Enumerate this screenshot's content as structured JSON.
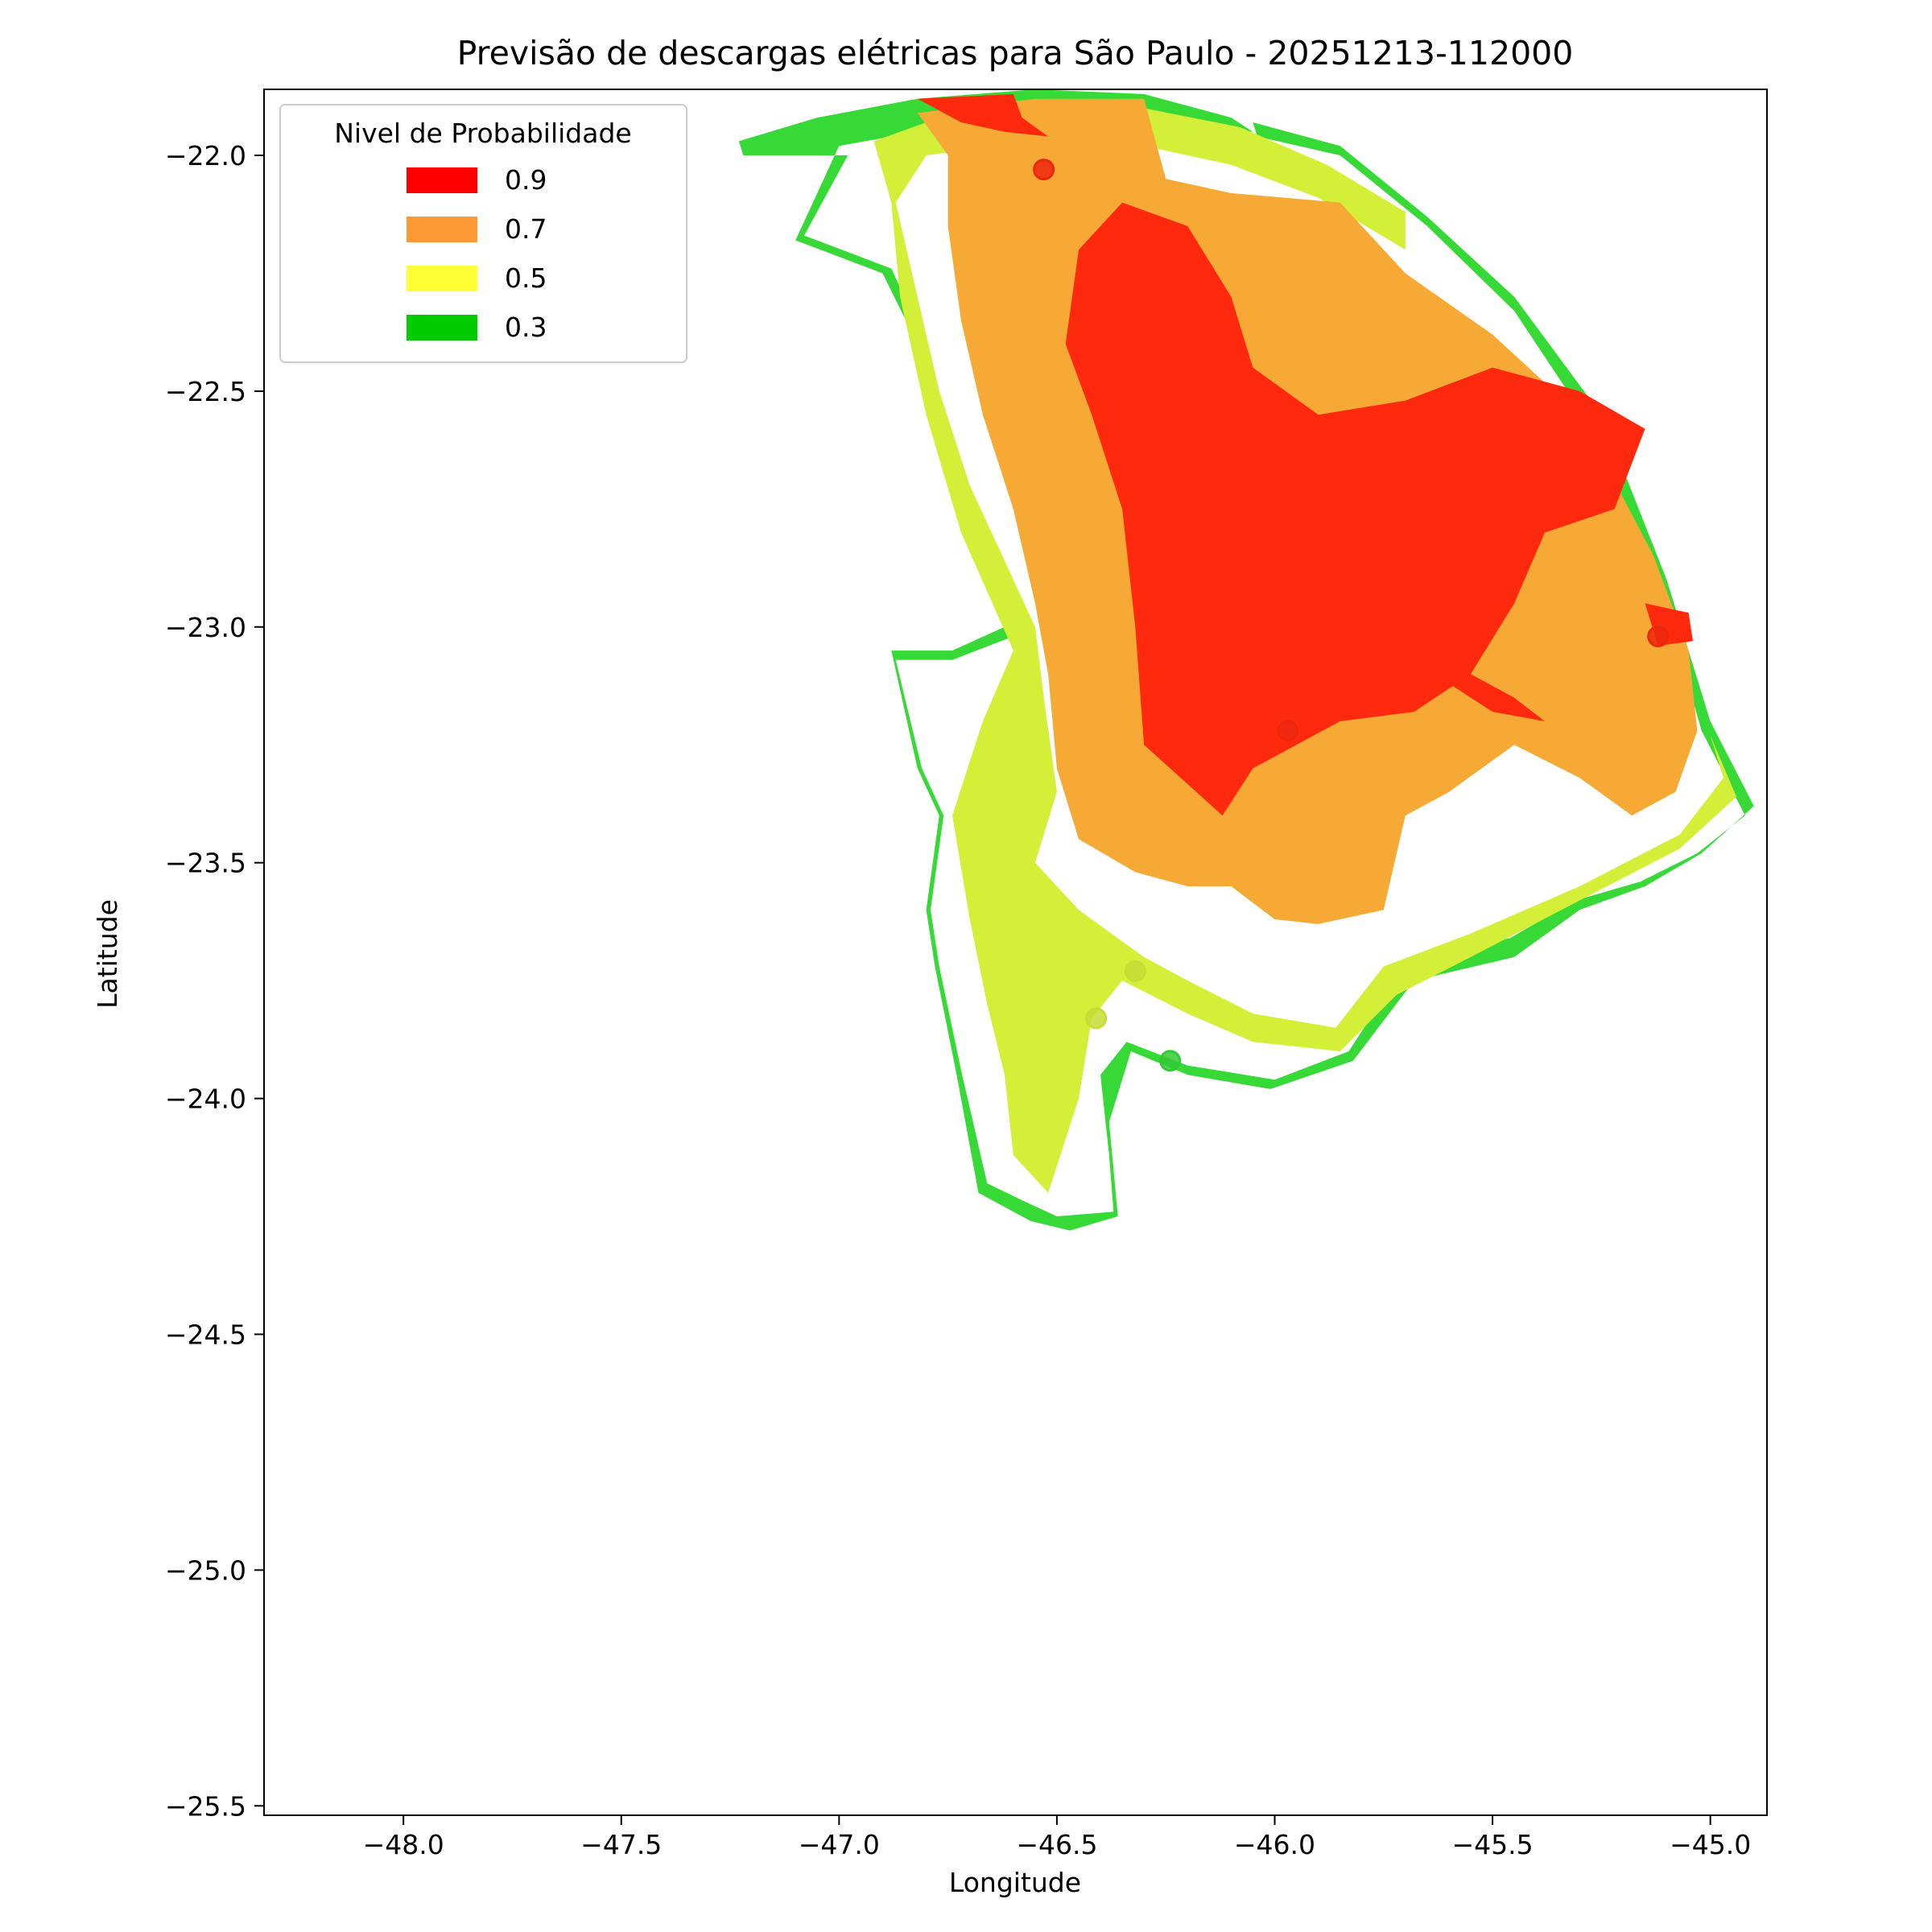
{
  "chart_data": {
    "type": "heatmap",
    "title": "Previsão de descargas elétricas para São Paulo - 20251213-112000",
    "xlabel": "Longitude",
    "ylabel": "Latitude",
    "xlim": [
      -48.32,
      -44.87
    ],
    "ylim": [
      -25.52,
      -21.86
    ],
    "xticks": [
      -48.0,
      -47.5,
      -47.0,
      -46.5,
      -46.0,
      -45.5,
      -45.0
    ],
    "xtick_labels": [
      "−48.0",
      "−47.5",
      "−47.0",
      "−46.5",
      "−46.0",
      "−45.5",
      "−45.0"
    ],
    "yticks": [
      -22.0,
      -22.5,
      -23.0,
      -23.5,
      -24.0,
      -24.5,
      -25.0,
      -25.5
    ],
    "ytick_labels": [
      "−22.0",
      "−22.5",
      "−23.0",
      "−23.5",
      "−24.0",
      "−24.5",
      "−25.0",
      "−25.5"
    ],
    "grid": false,
    "legend": {
      "title": "Nivel de Probabilidade",
      "placement": "top-left",
      "entries": [
        {
          "label": "0.9",
          "color": "#ff0000"
        },
        {
          "label": "0.7",
          "color": "#ff9933"
        },
        {
          "label": "0.5",
          "color": "#ffff33"
        },
        {
          "label": "0.3",
          "color": "#00cc00"
        }
      ]
    },
    "fill_colors": {
      "0.3": "#37d937",
      "0.5": "#d4ef38",
      "0.7": "#f6aa35",
      "0.9": "#ff2a0e"
    },
    "regions": [
      {
        "level": "0.3",
        "polygons": [
          [
            [
              -47.23,
              -21.97
            ],
            [
              -47.05,
              -21.92
            ],
            [
              -46.82,
              -21.88
            ],
            [
              -46.55,
              -21.86
            ],
            [
              -46.3,
              -21.87
            ],
            [
              -46.1,
              -21.92
            ],
            [
              -46.05,
              -21.95
            ],
            [
              -46.3,
              -21.93
            ],
            [
              -46.55,
              -21.92
            ],
            [
              -46.82,
              -21.95
            ],
            [
              -47.0,
              -21.98
            ],
            [
              -47.1,
              -22.18
            ],
            [
              -46.9,
              -22.25
            ],
            [
              -46.82,
              -22.4
            ],
            [
              -46.74,
              -22.7
            ],
            [
              -46.62,
              -23.0
            ],
            [
              -46.74,
              -23.05
            ],
            [
              -46.88,
              -23.05
            ],
            [
              -46.82,
              -23.3
            ],
            [
              -46.77,
              -23.4
            ],
            [
              -46.8,
              -23.6
            ],
            [
              -46.78,
              -23.72
            ],
            [
              -46.73,
              -23.95
            ],
            [
              -46.68,
              -24.2
            ],
            [
              -46.56,
              -24.26
            ],
            [
              -46.47,
              -24.28
            ],
            [
              -46.36,
              -24.25
            ],
            [
              -46.38,
              -24.05
            ],
            [
              -46.33,
              -23.9
            ],
            [
              -46.2,
              -23.95
            ],
            [
              -46.01,
              -23.98
            ],
            [
              -45.82,
              -23.92
            ],
            [
              -45.68,
              -23.75
            ],
            [
              -45.45,
              -23.7
            ],
            [
              -45.3,
              -23.6
            ],
            [
              -45.15,
              -23.55
            ],
            [
              -45.02,
              -23.48
            ],
            [
              -44.9,
              -23.38
            ],
            [
              -45.0,
              -23.2
            ],
            [
              -45.1,
              -22.9
            ],
            [
              -45.25,
              -22.55
            ],
            [
              -45.45,
              -22.3
            ],
            [
              -45.65,
              -22.13
            ],
            [
              -45.85,
              -21.98
            ],
            [
              -46.05,
              -21.93
            ],
            [
              -46.04,
              -21.96
            ],
            [
              -45.85,
              -22.0
            ],
            [
              -45.65,
              -22.15
            ],
            [
              -45.45,
              -22.33
            ],
            [
              -45.27,
              -22.58
            ],
            [
              -45.12,
              -22.9
            ],
            [
              -45.02,
              -23.22
            ],
            [
              -44.92,
              -23.4
            ],
            [
              -45.03,
              -23.48
            ],
            [
              -45.16,
              -23.54
            ],
            [
              -45.31,
              -23.58
            ],
            [
              -45.46,
              -23.66
            ],
            [
              -45.69,
              -23.7
            ],
            [
              -45.83,
              -23.9
            ],
            [
              -46.0,
              -23.96
            ],
            [
              -46.2,
              -23.93
            ],
            [
              -46.34,
              -23.88
            ],
            [
              -46.4,
              -23.95
            ],
            [
              -46.38,
              -24.12
            ],
            [
              -46.37,
              -24.24
            ],
            [
              -46.5,
              -24.25
            ],
            [
              -46.57,
              -24.22
            ],
            [
              -46.66,
              -24.18
            ],
            [
              -46.72,
              -23.94
            ],
            [
              -46.77,
              -23.72
            ],
            [
              -46.79,
              -23.6
            ],
            [
              -46.76,
              -23.4
            ],
            [
              -46.81,
              -23.3
            ],
            [
              -46.87,
              -23.07
            ],
            [
              -46.74,
              -23.07
            ],
            [
              -46.6,
              -23.02
            ],
            [
              -46.73,
              -22.7
            ],
            [
              -46.8,
              -22.4
            ],
            [
              -46.88,
              -22.24
            ],
            [
              -47.08,
              -22.17
            ],
            [
              -46.98,
              -22.0
            ],
            [
              -47.22,
              -22.0
            ]
          ]
        ]
      },
      {
        "level": "0.5",
        "polygons": [
          [
            [
              -46.92,
              -21.97
            ],
            [
              -46.8,
              -21.93
            ],
            [
              -46.55,
              -21.9
            ],
            [
              -46.3,
              -21.9
            ],
            [
              -46.08,
              -21.94
            ],
            [
              -45.88,
              -22.02
            ],
            [
              -45.7,
              -22.12
            ],
            [
              -45.7,
              -22.2
            ],
            [
              -45.9,
              -22.09
            ],
            [
              -46.1,
              -22.02
            ],
            [
              -46.3,
              -21.98
            ],
            [
              -46.55,
              -21.97
            ],
            [
              -46.8,
              -22.0
            ],
            [
              -46.87,
              -22.1
            ],
            [
              -46.82,
              -22.3
            ],
            [
              -46.77,
              -22.5
            ],
            [
              -46.7,
              -22.7
            ],
            [
              -46.55,
              -23.0
            ],
            [
              -46.53,
              -23.15
            ],
            [
              -46.5,
              -23.35
            ],
            [
              -46.55,
              -23.5
            ],
            [
              -46.45,
              -23.6
            ],
            [
              -46.3,
              -23.7
            ],
            [
              -46.2,
              -23.75
            ],
            [
              -46.05,
              -23.82
            ],
            [
              -45.86,
              -23.85
            ],
            [
              -45.75,
              -23.72
            ],
            [
              -45.55,
              -23.65
            ],
            [
              -45.3,
              -23.55
            ],
            [
              -45.07,
              -23.44
            ],
            [
              -44.97,
              -23.32
            ],
            [
              -45.0,
              -23.23
            ],
            [
              -44.94,
              -23.36
            ],
            [
              -45.07,
              -23.47
            ],
            [
              -45.3,
              -23.58
            ],
            [
              -45.55,
              -23.7
            ],
            [
              -45.72,
              -23.78
            ],
            [
              -45.85,
              -23.9
            ],
            [
              -46.05,
              -23.88
            ],
            [
              -46.2,
              -23.82
            ],
            [
              -46.35,
              -23.75
            ],
            [
              -46.42,
              -23.83
            ],
            [
              -46.45,
              -24.0
            ],
            [
              -46.52,
              -24.2
            ],
            [
              -46.6,
              -24.12
            ],
            [
              -46.62,
              -23.95
            ],
            [
              -46.66,
              -23.8
            ],
            [
              -46.7,
              -23.62
            ],
            [
              -46.74,
              -23.4
            ],
            [
              -46.67,
              -23.2
            ],
            [
              -46.6,
              -23.05
            ],
            [
              -46.72,
              -22.8
            ],
            [
              -46.8,
              -22.55
            ],
            [
              -46.86,
              -22.3
            ],
            [
              -46.88,
              -22.1
            ]
          ]
        ]
      },
      {
        "level": "0.7",
        "polygons": [
          [
            [
              -46.82,
              -21.91
            ],
            [
              -46.55,
              -21.88
            ],
            [
              -46.3,
              -21.88
            ],
            [
              -46.25,
              -22.05
            ],
            [
              -46.1,
              -22.08
            ],
            [
              -45.85,
              -22.1
            ],
            [
              -45.7,
              -22.25
            ],
            [
              -45.5,
              -22.38
            ],
            [
              -45.3,
              -22.55
            ],
            [
              -45.13,
              -22.85
            ],
            [
              -45.05,
              -23.05
            ],
            [
              -45.03,
              -23.22
            ],
            [
              -45.08,
              -23.35
            ],
            [
              -45.18,
              -23.4
            ],
            [
              -45.3,
              -23.32
            ],
            [
              -45.45,
              -23.25
            ],
            [
              -45.6,
              -23.35
            ],
            [
              -45.7,
              -23.4
            ],
            [
              -45.75,
              -23.6
            ],
            [
              -45.9,
              -23.63
            ],
            [
              -46.0,
              -23.62
            ],
            [
              -46.1,
              -23.55
            ],
            [
              -46.2,
              -23.55
            ],
            [
              -46.32,
              -23.52
            ],
            [
              -46.45,
              -23.45
            ],
            [
              -46.5,
              -23.3
            ],
            [
              -46.52,
              -23.1
            ],
            [
              -46.55,
              -22.95
            ],
            [
              -46.6,
              -22.75
            ],
            [
              -46.67,
              -22.55
            ],
            [
              -46.72,
              -22.35
            ],
            [
              -46.75,
              -22.15
            ],
            [
              -46.75,
              -22.0
            ]
          ]
        ]
      },
      {
        "level": "0.9",
        "polygons": [
          [
            [
              -46.82,
              -21.88
            ],
            [
              -46.6,
              -21.87
            ],
            [
              -46.58,
              -21.92
            ],
            [
              -46.52,
              -21.96
            ],
            [
              -46.62,
              -21.95
            ],
            [
              -46.72,
              -21.93
            ]
          ],
          [
            [
              -46.45,
              -22.2
            ],
            [
              -46.35,
              -22.1
            ],
            [
              -46.2,
              -22.15
            ],
            [
              -46.1,
              -22.3
            ],
            [
              -46.05,
              -22.45
            ],
            [
              -45.9,
              -22.55
            ],
            [
              -45.7,
              -22.52
            ],
            [
              -45.5,
              -22.45
            ],
            [
              -45.3,
              -22.5
            ],
            [
              -45.15,
              -22.58
            ],
            [
              -45.22,
              -22.75
            ],
            [
              -45.38,
              -22.8
            ],
            [
              -45.45,
              -22.95
            ],
            [
              -45.55,
              -23.1
            ],
            [
              -45.68,
              -23.18
            ],
            [
              -45.85,
              -23.2
            ],
            [
              -45.95,
              -23.25
            ],
            [
              -46.05,
              -23.3
            ],
            [
              -46.12,
              -23.4
            ],
            [
              -46.18,
              -23.35
            ],
            [
              -46.3,
              -23.25
            ],
            [
              -46.32,
              -23.0
            ],
            [
              -46.35,
              -22.75
            ],
            [
              -46.42,
              -22.55
            ],
            [
              -46.48,
              -22.4
            ]
          ],
          [
            [
              -45.15,
              -22.95
            ],
            [
              -45.05,
              -22.97
            ],
            [
              -45.04,
              -23.03
            ],
            [
              -45.12,
              -23.04
            ]
          ],
          [
            [
              -45.62,
              -23.05
            ],
            [
              -45.55,
              -23.1
            ],
            [
              -45.45,
              -23.15
            ],
            [
              -45.38,
              -23.2
            ],
            [
              -45.5,
              -23.18
            ],
            [
              -45.6,
              -23.12
            ]
          ]
        ]
      }
    ],
    "markers": [
      {
        "lon": -46.53,
        "lat": -22.03,
        "level": "0.9"
      },
      {
        "lon": -45.97,
        "lat": -23.22,
        "level": "0.9"
      },
      {
        "lon": -45.12,
        "lat": -23.02,
        "level": "0.9"
      },
      {
        "lon": -46.32,
        "lat": -23.73,
        "level": "0.5"
      },
      {
        "lon": -46.41,
        "lat": -23.83,
        "level": "0.5"
      },
      {
        "lon": -46.24,
        "lat": -23.92,
        "level": "0.3"
      }
    ]
  }
}
